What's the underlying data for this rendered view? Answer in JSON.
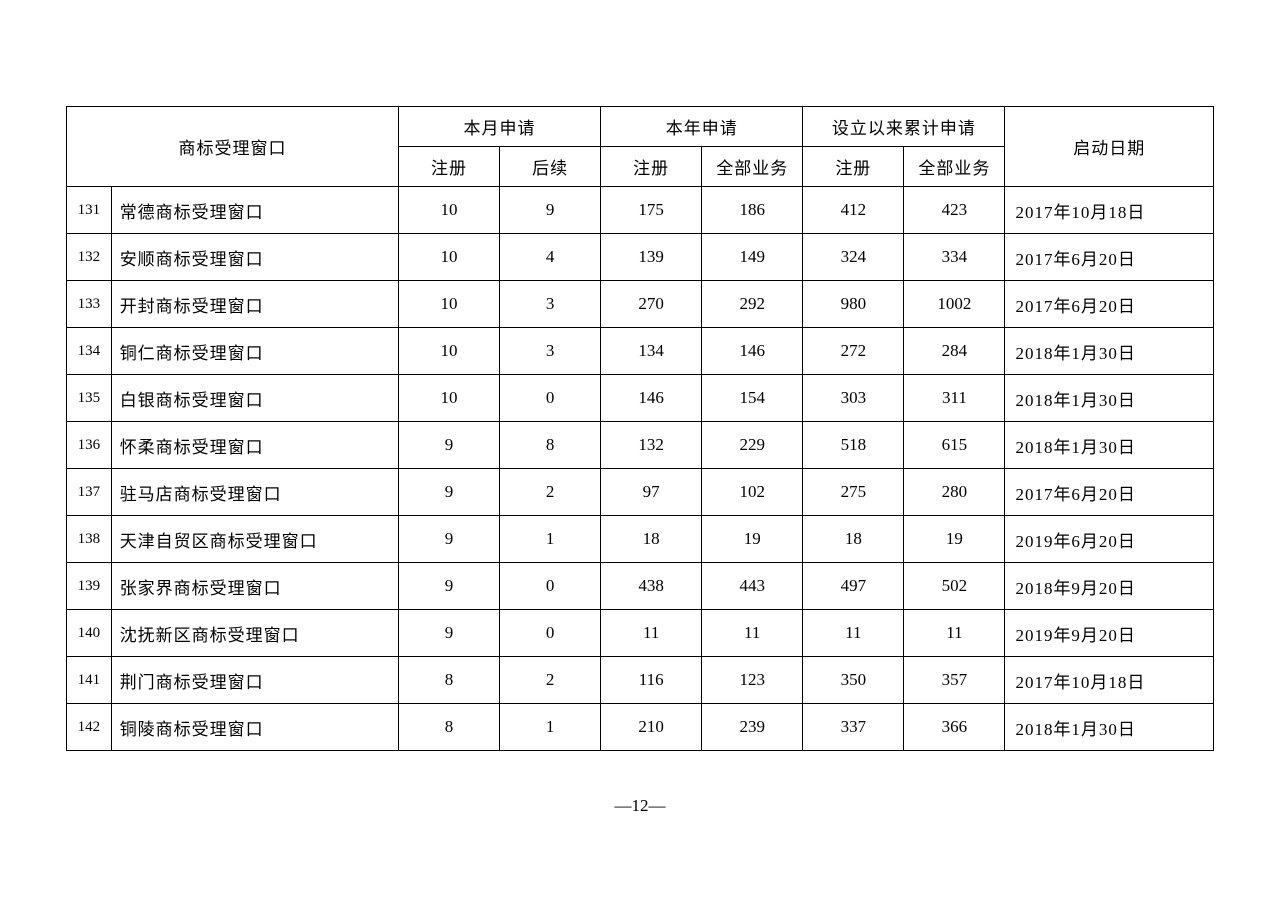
{
  "headers": {
    "name": "商标受理窗口",
    "month": "本月申请",
    "year": "本年申请",
    "total": "设立以来累计申请",
    "date": "启动日期",
    "sub_reg": "注册",
    "sub_followup": "后续",
    "sub_all": "全部业务"
  },
  "rows": [
    {
      "idx": "131",
      "name": "常德商标受理窗口",
      "m_reg": "10",
      "m_fol": "9",
      "y_reg": "175",
      "y_all": "186",
      "t_reg": "412",
      "t_all": "423",
      "date": "2017年10月18日"
    },
    {
      "idx": "132",
      "name": "安顺商标受理窗口",
      "m_reg": "10",
      "m_fol": "4",
      "y_reg": "139",
      "y_all": "149",
      "t_reg": "324",
      "t_all": "334",
      "date": "2017年6月20日"
    },
    {
      "idx": "133",
      "name": "开封商标受理窗口",
      "m_reg": "10",
      "m_fol": "3",
      "y_reg": "270",
      "y_all": "292",
      "t_reg": "980",
      "t_all": "1002",
      "date": "2017年6月20日"
    },
    {
      "idx": "134",
      "name": "铜仁商标受理窗口",
      "m_reg": "10",
      "m_fol": "3",
      "y_reg": "134",
      "y_all": "146",
      "t_reg": "272",
      "t_all": "284",
      "date": "2018年1月30日"
    },
    {
      "idx": "135",
      "name": "白银商标受理窗口",
      "m_reg": "10",
      "m_fol": "0",
      "y_reg": "146",
      "y_all": "154",
      "t_reg": "303",
      "t_all": "311",
      "date": "2018年1月30日"
    },
    {
      "idx": "136",
      "name": "怀柔商标受理窗口",
      "m_reg": "9",
      "m_fol": "8",
      "y_reg": "132",
      "y_all": "229",
      "t_reg": "518",
      "t_all": "615",
      "date": "2018年1月30日"
    },
    {
      "idx": "137",
      "name": "驻马店商标受理窗口",
      "m_reg": "9",
      "m_fol": "2",
      "y_reg": "97",
      "y_all": "102",
      "t_reg": "275",
      "t_all": "280",
      "date": "2017年6月20日"
    },
    {
      "idx": "138",
      "name": "天津自贸区商标受理窗口",
      "m_reg": "9",
      "m_fol": "1",
      "y_reg": "18",
      "y_all": "19",
      "t_reg": "18",
      "t_all": "19",
      "date": "2019年6月20日"
    },
    {
      "idx": "139",
      "name": "张家界商标受理窗口",
      "m_reg": "9",
      "m_fol": "0",
      "y_reg": "438",
      "y_all": "443",
      "t_reg": "497",
      "t_all": "502",
      "date": "2018年9月20日"
    },
    {
      "idx": "140",
      "name": "沈抚新区商标受理窗口",
      "m_reg": "9",
      "m_fol": "0",
      "y_reg": "11",
      "y_all": "11",
      "t_reg": "11",
      "t_all": "11",
      "date": "2019年9月20日"
    },
    {
      "idx": "141",
      "name": "荆门商标受理窗口",
      "m_reg": "8",
      "m_fol": "2",
      "y_reg": "116",
      "y_all": "123",
      "t_reg": "350",
      "t_all": "357",
      "date": "2017年10月18日"
    },
    {
      "idx": "142",
      "name": "铜陵商标受理窗口",
      "m_reg": "8",
      "m_fol": "1",
      "y_reg": "210",
      "y_all": "239",
      "t_reg": "337",
      "t_all": "366",
      "date": "2018年1月30日"
    }
  ],
  "pageNumber": "—12—"
}
